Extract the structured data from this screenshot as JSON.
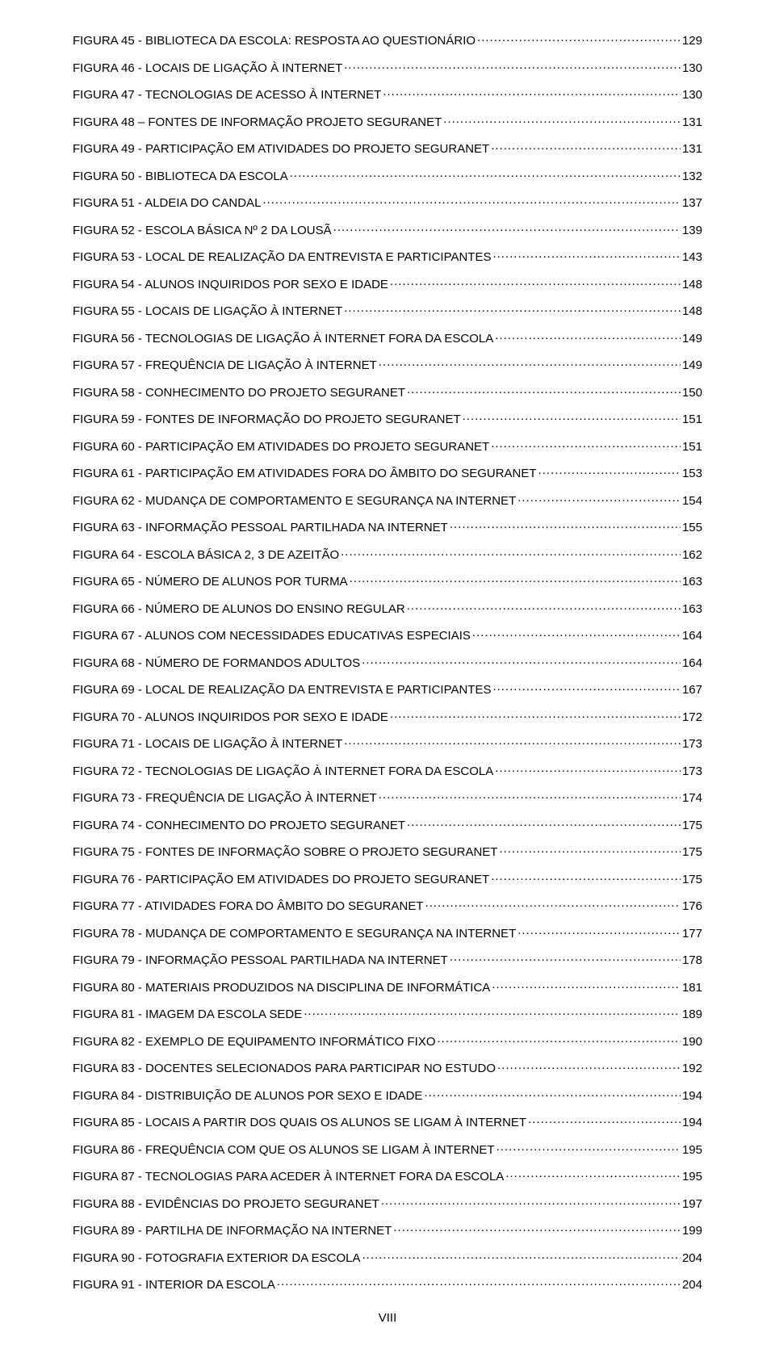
{
  "footer_page_number": "VIII",
  "entries": [
    {
      "label": "FIGURA 45 - BIBLIOTECA DA ESCOLA: RESPOSTA AO QUESTIONÁRIO",
      "page": "129"
    },
    {
      "label": "FIGURA 46 - LOCAIS DE LIGAÇÃO À INTERNET",
      "page": "130"
    },
    {
      "label": "FIGURA 47 - TECNOLOGIAS DE ACESSO À INTERNET",
      "page": "130"
    },
    {
      "label": "FIGURA 48 – FONTES DE INFORMAÇÃO PROJETO SEGURANET",
      "page": "131"
    },
    {
      "label": "FIGURA 49 - PARTICIPAÇÃO EM ATIVIDADES DO PROJETO SEGURANET",
      "page": "131"
    },
    {
      "label": "FIGURA 50 - BIBLIOTECA DA ESCOLA",
      "page": "132"
    },
    {
      "label": "FIGURA 51 - ALDEIA DO CANDAL",
      "page": "137"
    },
    {
      "label": "FIGURA 52 - ESCOLA BÁSICA Nº 2 DA LOUSÃ",
      "page": "139"
    },
    {
      "label": "FIGURA 53 - LOCAL DE REALIZAÇÃO DA ENTREVISTA E PARTICIPANTES",
      "page": "143"
    },
    {
      "label": "FIGURA 54 - ALUNOS INQUIRIDOS POR SEXO E IDADE",
      "page": "148"
    },
    {
      "label": "FIGURA 55 - LOCAIS DE LIGAÇÃO À INTERNET",
      "page": "148"
    },
    {
      "label": "FIGURA 56 - TECNOLOGIAS DE LIGAÇÃO À INTERNET FORA DA ESCOLA",
      "page": "149"
    },
    {
      "label": "FIGURA 57 - FREQUÊNCIA DE LIGAÇÃO À INTERNET",
      "page": "149"
    },
    {
      "label": "FIGURA 58 - CONHECIMENTO DO PROJETO SEGURANET",
      "page": "150"
    },
    {
      "label": "FIGURA 59 - FONTES DE INFORMAÇÃO DO PROJETO SEGURANET",
      "page": "151"
    },
    {
      "label": "FIGURA 60 - PARTICIPAÇÃO EM ATIVIDADES DO PROJETO SEGURANET",
      "page": "151"
    },
    {
      "label": "FIGURA 61 - PARTICIPAÇÃO EM ATIVIDADES FORA DO ÂMBITO DO SEGURANET",
      "page": "153"
    },
    {
      "label": "FIGURA 62 - MUDANÇA DE COMPORTAMENTO E SEGURANÇA NA INTERNET",
      "page": "154"
    },
    {
      "label": "FIGURA 63 - INFORMAÇÃO PESSOAL PARTILHADA NA INTERNET",
      "page": "155"
    },
    {
      "label": "FIGURA 64 - ESCOLA BÁSICA 2, 3 DE AZEITÃO",
      "page": "162"
    },
    {
      "label": "FIGURA 65 - NÚMERO DE ALUNOS POR TURMA",
      "page": "163"
    },
    {
      "label": "FIGURA 66 - NÚMERO DE ALUNOS DO ENSINO REGULAR",
      "page": "163"
    },
    {
      "label": "FIGURA 67 - ALUNOS COM NECESSIDADES EDUCATIVAS ESPECIAIS",
      "page": "164"
    },
    {
      "label": "FIGURA 68 - NÚMERO DE FORMANDOS ADULTOS",
      "page": "164"
    },
    {
      "label": "FIGURA 69 - LOCAL DE REALIZAÇÃO DA ENTREVISTA E PARTICIPANTES",
      "page": "167"
    },
    {
      "label": "FIGURA 70 - ALUNOS INQUIRIDOS POR SEXO E IDADE",
      "page": "172"
    },
    {
      "label": "FIGURA 71 - LOCAIS DE LIGAÇÃO À INTERNET",
      "page": "173"
    },
    {
      "label": "FIGURA 72 - TECNOLOGIAS DE LIGAÇÃO À INTERNET FORA DA ESCOLA",
      "page": "173"
    },
    {
      "label": "FIGURA 73 - FREQUÊNCIA DE LIGAÇÃO À INTERNET",
      "page": "174"
    },
    {
      "label": "FIGURA 74 - CONHECIMENTO DO PROJETO SEGURANET",
      "page": "175"
    },
    {
      "label": "FIGURA 75 - FONTES DE INFORMAÇÃO SOBRE O PROJETO SEGURANET",
      "page": "175"
    },
    {
      "label": "FIGURA 76 - PARTICIPAÇÃO EM ATIVIDADES DO PROJETO SEGURANET",
      "page": "175"
    },
    {
      "label": "FIGURA 77  - ATIVIDADES FORA DO ÂMBITO DO SEGURANET",
      "page": "176"
    },
    {
      "label": "FIGURA 78 - MUDANÇA DE COMPORTAMENTO E SEGURANÇA NA INTERNET",
      "page": "177"
    },
    {
      "label": "FIGURA 79 - INFORMAÇÃO PESSOAL PARTILHADA NA INTERNET",
      "page": "178"
    },
    {
      "label": "FIGURA 80  - MATERIAIS PRODUZIDOS NA DISCIPLINA DE INFORMÁTICA",
      "page": "181"
    },
    {
      "label": "FIGURA 81 - IMAGEM DA ESCOLA SEDE",
      "page": "189"
    },
    {
      "label": "FIGURA 82 - EXEMPLO DE EQUIPAMENTO INFORMÁTICO FIXO",
      "page": "190"
    },
    {
      "label": "FIGURA 83 - DOCENTES SELECIONADOS PARA PARTICIPAR NO ESTUDO",
      "page": "192"
    },
    {
      "label": "FIGURA 84 - DISTRIBUIÇÃO DE ALUNOS POR SEXO E IDADE",
      "page": "194"
    },
    {
      "label": "FIGURA 85 - LOCAIS A PARTIR DOS QUAIS OS ALUNOS SE LIGAM À INTERNET",
      "page": "194"
    },
    {
      "label": "FIGURA 86 - FREQUÊNCIA COM QUE OS ALUNOS SE LIGAM À INTERNET",
      "page": "195"
    },
    {
      "label": "FIGURA 87 - TECNOLOGIAS PARA ACEDER À INTERNET FORA DA ESCOLA",
      "page": "195"
    },
    {
      "label": "FIGURA 88  - EVIDÊNCIAS DO PROJETO SEGURANET",
      "page": "197"
    },
    {
      "label": "FIGURA 89 - PARTILHA DE INFORMAÇÃO NA INTERNET",
      "page": "199"
    },
    {
      "label": "FIGURA 90 - FOTOGRAFIA EXTERIOR DA ESCOLA",
      "page": "204"
    },
    {
      "label": "FIGURA 91 - INTERIOR DA ESCOLA",
      "page": "204"
    }
  ]
}
